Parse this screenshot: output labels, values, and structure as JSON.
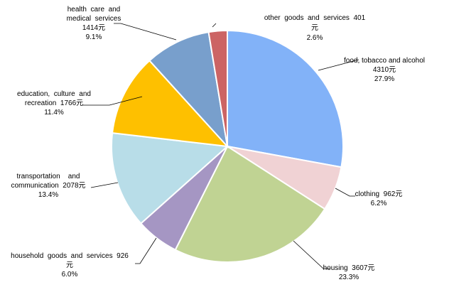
{
  "chart_data": {
    "type": "pie",
    "start_angle_deg": 0,
    "direction": "clockwise",
    "legend": "none",
    "slices": [
      {
        "category": "food, tobacco and alcohol",
        "value": 4310,
        "percent": "27.9%",
        "color": "#82B2F8",
        "label_lines": [
          "food, tobacco and alcohol",
          "4310元",
          "27.9%"
        ]
      },
      {
        "category": "clothing",
        "value": 962,
        "percent": "6.2%",
        "color": "#F0D2D4",
        "label_lines": [
          "clothing  962元",
          "6.2%"
        ]
      },
      {
        "category": "housing",
        "value": 3607,
        "percent": "23.3%",
        "color": "#C0D393",
        "label_lines": [
          "housing  3607元",
          "23.3%"
        ]
      },
      {
        "category": "household goods and services",
        "value": 926,
        "percent": "6.0%",
        "color": "#A596C3",
        "label_lines": [
          "household  goods  and  services  926",
          "元",
          "6.0%"
        ]
      },
      {
        "category": "transportation and communication",
        "value": 2078,
        "percent": "13.4%",
        "color": "#B8DDE8",
        "label_lines": [
          "transportation    and",
          "communication  2078元",
          "13.4%"
        ]
      },
      {
        "category": "education, culture and recreation",
        "value": 1766,
        "percent": "11.4%",
        "color": "#FEC000",
        "label_lines": [
          "education,  culture  and",
          "recreation  1766元",
          "11.4%"
        ]
      },
      {
        "category": "health care and medical services",
        "value": 1414,
        "percent": "9.1%",
        "color": "#789FCC",
        "label_lines": [
          "health  care  and",
          "medical  services",
          "1414元",
          "9.1%"
        ]
      },
      {
        "category": "other goods and services",
        "value": 401,
        "percent": "2.6%",
        "color": "#CC6464",
        "label_lines": [
          "other  goods  and  services  401",
          "元",
          "2.6%"
        ]
      }
    ]
  }
}
